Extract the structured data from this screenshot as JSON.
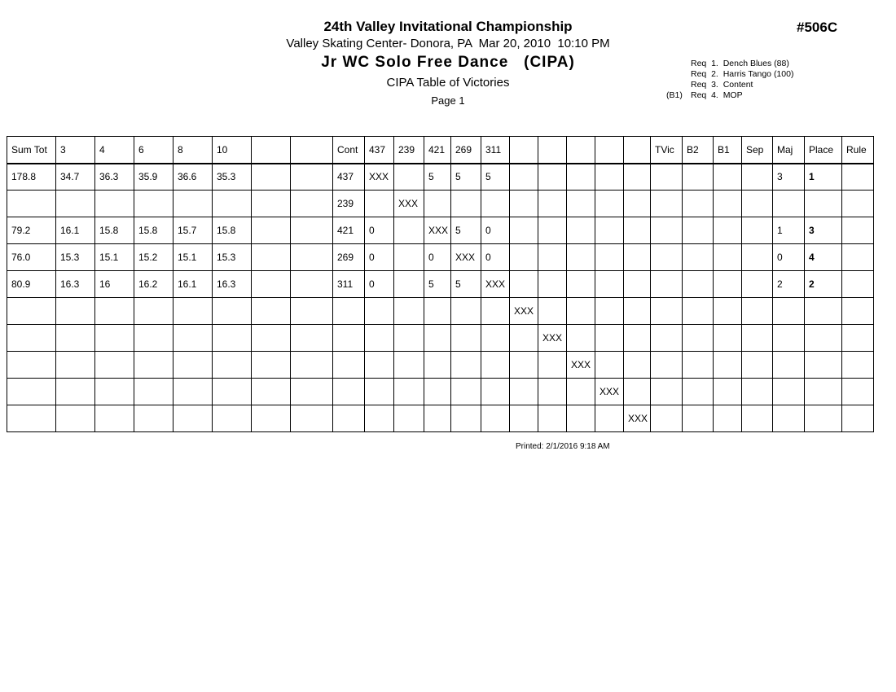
{
  "page": {
    "event_number": "#506C",
    "titles": {
      "line1": "24th Valley Invitational Championship",
      "line2": "Valley Skating Center- Donora, PA  Mar 20, 2010  10:10 PM",
      "line3": "Jr WC Solo Free Dance   (CIPA)",
      "line4": "CIPA Table of Victories",
      "line5": "Page 1"
    },
    "printed": "Printed: 2/1/2016 9:18 AM"
  },
  "requirements": {
    "lines": [
      {
        "prefix": "",
        "text": "Req  1.  Dench Blues (88)"
      },
      {
        "prefix": "",
        "text": "Req  2.  Harris Tango (100)"
      },
      {
        "prefix": "",
        "text": "Req  3.  Content"
      },
      {
        "prefix": "(B1)",
        "text": "Req  4.  MOP"
      }
    ]
  },
  "table": {
    "columns": [
      "Sum Tot",
      "3",
      "4",
      "6",
      "8",
      "10",
      "",
      "",
      "Cont",
      "437",
      "239",
      "421",
      "269",
      "311",
      "",
      "",
      "",
      "",
      "",
      "TVic",
      "B2",
      "B1",
      "Sep",
      "Maj",
      "Place",
      "Rule"
    ],
    "bold_column_label": "Place",
    "rows": [
      [
        "178.8",
        "34.7",
        "36.3",
        "35.9",
        "36.6",
        "35.3",
        "",
        "",
        "437",
        "XXX",
        "",
        "5",
        "5",
        "5",
        "",
        "",
        "",
        "",
        "",
        "",
        "",
        "",
        "",
        "3",
        "1",
        ""
      ],
      [
        "",
        "",
        "",
        "",
        "",
        "",
        "",
        "",
        "239",
        "",
        "XXX",
        "",
        "",
        "",
        "",
        "",
        "",
        "",
        "",
        "",
        "",
        "",
        "",
        "",
        "",
        ""
      ],
      [
        "79.2",
        "16.1",
        "15.8",
        "15.8",
        "15.7",
        "15.8",
        "",
        "",
        "421",
        "0",
        "",
        "XXX",
        "5",
        "0",
        "",
        "",
        "",
        "",
        "",
        "",
        "",
        "",
        "",
        "1",
        "3",
        ""
      ],
      [
        "76.0",
        "15.3",
        "15.1",
        "15.2",
        "15.1",
        "15.3",
        "",
        "",
        "269",
        "0",
        "",
        "0",
        "XXX",
        "0",
        "",
        "",
        "",
        "",
        "",
        "",
        "",
        "",
        "",
        "0",
        "4",
        ""
      ],
      [
        "80.9",
        "16.3",
        "16",
        "16.2",
        "16.1",
        "16.3",
        "",
        "",
        "311",
        "0",
        "",
        "5",
        "5",
        "XXX",
        "",
        "",
        "",
        "",
        "",
        "",
        "",
        "",
        "",
        "2",
        "2",
        ""
      ],
      [
        "",
        "",
        "",
        "",
        "",
        "",
        "",
        "",
        "",
        "",
        "",
        "",
        "",
        "",
        "XXX",
        "",
        "",
        "",
        "",
        "",
        "",
        "",
        "",
        "",
        "",
        ""
      ],
      [
        "",
        "",
        "",
        "",
        "",
        "",
        "",
        "",
        "",
        "",
        "",
        "",
        "",
        "",
        "",
        "XXX",
        "",
        "",
        "",
        "",
        "",
        "",
        "",
        "",
        "",
        ""
      ],
      [
        "",
        "",
        "",
        "",
        "",
        "",
        "",
        "",
        "",
        "",
        "",
        "",
        "",
        "",
        "",
        "",
        "XXX",
        "",
        "",
        "",
        "",
        "",
        "",
        "",
        "",
        ""
      ],
      [
        "",
        "",
        "",
        "",
        "",
        "",
        "",
        "",
        "",
        "",
        "",
        "",
        "",
        "",
        "",
        "",
        "",
        "XXX",
        "",
        "",
        "",
        "",
        "",
        "",
        "",
        ""
      ],
      [
        "",
        "",
        "",
        "",
        "",
        "",
        "",
        "",
        "",
        "",
        "",
        "",
        "",
        "",
        "",
        "",
        "",
        "",
        "XXX",
        "",
        "",
        "",
        "",
        "",
        "",
        ""
      ]
    ]
  }
}
